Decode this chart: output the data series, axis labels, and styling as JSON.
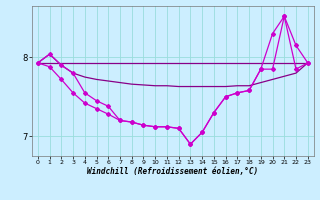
{
  "xlabel": "Windchill (Refroidissement éolien,°C)",
  "background_color": "#cceeff",
  "grid_color": "#99dddd",
  "line_color_dark": "#880088",
  "line_color_bright": "#cc00cc",
  "xlim": [
    -0.5,
    23.5
  ],
  "ylim": [
    6.75,
    8.65
  ],
  "yticks": [
    7,
    8
  ],
  "xticks": [
    0,
    1,
    2,
    3,
    4,
    5,
    6,
    7,
    8,
    9,
    10,
    11,
    12,
    13,
    14,
    15,
    16,
    17,
    18,
    19,
    20,
    21,
    22,
    23
  ],
  "hours": [
    0,
    1,
    2,
    3,
    4,
    5,
    6,
    7,
    8,
    9,
    10,
    11,
    12,
    13,
    14,
    15,
    16,
    17,
    18,
    19,
    20,
    21,
    22,
    23
  ],
  "line_top": [
    7.93,
    7.93,
    7.93,
    7.93,
    7.93,
    7.93,
    7.93,
    7.93,
    7.93,
    7.93,
    7.93,
    7.93,
    7.93,
    7.93,
    7.93,
    7.93,
    7.93,
    7.93,
    7.93,
    7.93,
    7.93,
    7.93,
    7.93,
    7.93
  ],
  "line_upper": [
    7.93,
    8.04,
    7.9,
    7.8,
    7.75,
    7.72,
    7.7,
    7.68,
    7.66,
    7.65,
    7.64,
    7.64,
    7.63,
    7.63,
    7.63,
    7.63,
    7.63,
    7.64,
    7.64,
    7.68,
    7.72,
    7.76,
    7.8,
    7.93
  ],
  "line_max": [
    7.93,
    8.04,
    7.9,
    7.8,
    7.55,
    7.45,
    7.38,
    7.2,
    7.18,
    7.14,
    7.12,
    7.12,
    7.1,
    6.9,
    7.05,
    7.3,
    7.5,
    7.55,
    7.58,
    7.85,
    8.3,
    8.52,
    8.15,
    7.93
  ],
  "line_min": [
    7.93,
    7.88,
    7.72,
    7.55,
    7.42,
    7.35,
    7.28,
    7.2,
    7.18,
    7.14,
    7.12,
    7.12,
    7.1,
    6.9,
    7.05,
    7.3,
    7.5,
    7.55,
    7.58,
    7.85,
    7.85,
    8.52,
    7.85,
    7.93
  ]
}
